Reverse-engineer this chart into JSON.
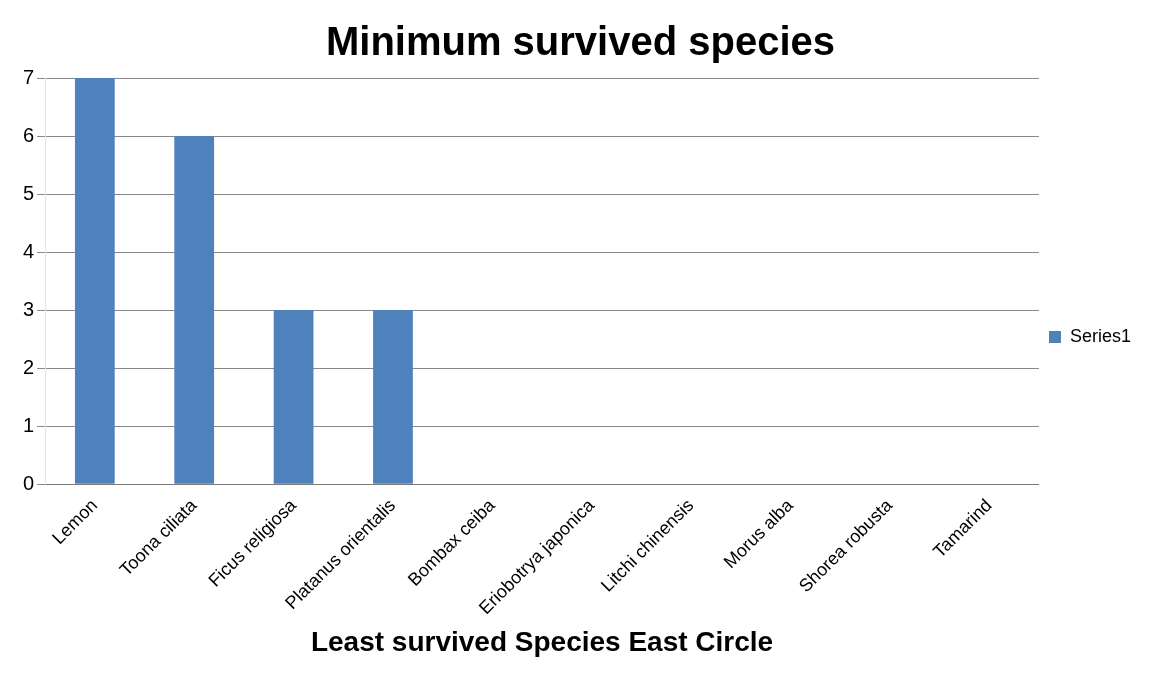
{
  "chart_data": {
    "type": "bar",
    "title": "Minimum survived species",
    "xlabel": "Least survived Species East Circle",
    "categories": [
      "Lemon",
      "Toona ciliata",
      "Ficus religiosa",
      "Platanus orientalis",
      "Bombax ceiba",
      "Eriobotrya japonica",
      "Litchi chinensis",
      "Morus alba",
      "Shorea robusta",
      "Tamarind"
    ],
    "series": [
      {
        "name": "Series1",
        "color": "#4f81bd",
        "values": [
          7,
          6,
          3,
          3,
          0,
          0,
          0,
          0,
          0,
          0
        ]
      }
    ],
    "ylim": [
      0,
      7
    ],
    "yticks": [
      0,
      1,
      2,
      3,
      4,
      5,
      6,
      7
    ],
    "grid": "y",
    "legend": "right"
  }
}
